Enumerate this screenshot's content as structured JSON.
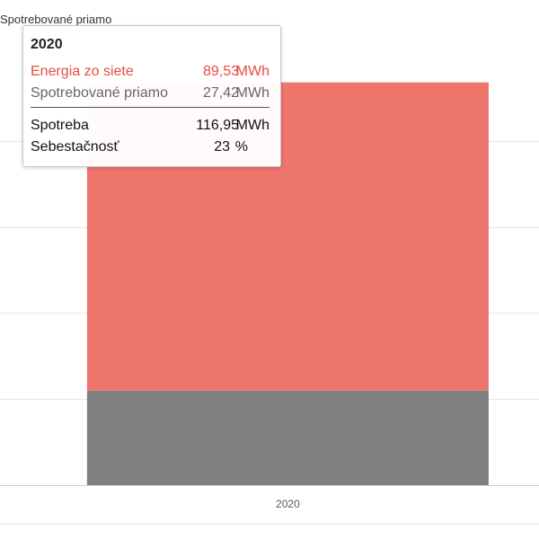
{
  "chart_data": {
    "type": "bar",
    "stacked": true,
    "categories": [
      "2020"
    ],
    "series": [
      {
        "name": "Spotrebované priamo",
        "values": [
          27.42
        ],
        "color": "#808080"
      },
      {
        "name": "Energia zo siete",
        "values": [
          89.53
        ],
        "color": "#ed756c"
      }
    ],
    "ylim": [
      0,
      120
    ],
    "grid": true,
    "legend_position": "top-left"
  },
  "legend": {
    "label": "Spotrebované priamo"
  },
  "tooltip": {
    "title": "2020",
    "rows": [
      {
        "name": "Energia zo siete",
        "value": "89,53",
        "unit": "MWh",
        "color": "#e84c41"
      },
      {
        "name": "Spotrebované priamo",
        "value": "27,42",
        "unit": "MWh",
        "color": "#666666"
      }
    ],
    "summary": [
      {
        "name": "Spotreba",
        "value": "116,95",
        "unit": "MWh"
      },
      {
        "name": "Sebestačnosť",
        "value": "23",
        "unit": "%"
      }
    ]
  }
}
